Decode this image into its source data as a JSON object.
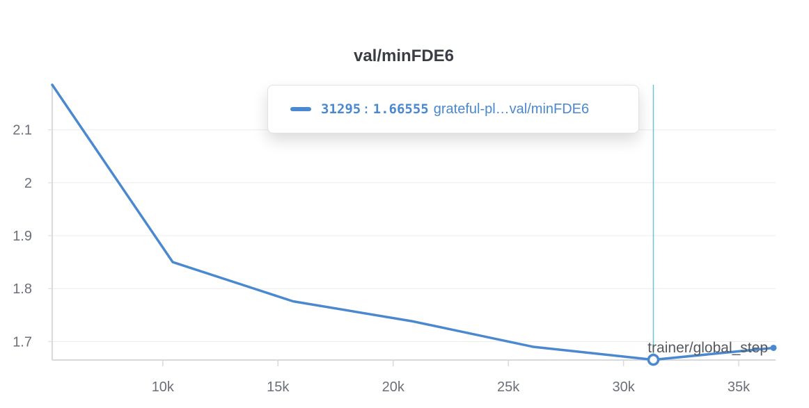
{
  "chart_data": {
    "type": "line",
    "title": "val/minFDE6",
    "xlabel": "trainer/global_step",
    "ylabel": "",
    "xlim": [
      5200,
      36600
    ],
    "ylim": [
      1.665,
      2.185
    ],
    "x_ticks": [
      10000,
      15000,
      20000,
      25000,
      30000,
      35000
    ],
    "x_tick_labels": [
      "10k",
      "15k",
      "20k",
      "25k",
      "30k",
      "35k"
    ],
    "y_ticks": [
      1.7,
      1.8,
      1.9,
      2.0,
      2.1
    ],
    "y_tick_labels": [
      "1.7",
      "1.8",
      "1.9",
      "2",
      "2.1"
    ],
    "grid": true,
    "color": "#4a88cf",
    "series": [
      {
        "x": [
          5200,
          10430,
          15650,
          20860,
          26080,
          31295,
          36510
        ],
        "values": [
          2.185,
          1.85,
          1.776,
          1.738,
          1.69,
          1.66555,
          1.688
        ]
      }
    ],
    "hover": {
      "step": 31295,
      "value": 1.66555,
      "step_text": "31295",
      "separator": ":",
      "value_text": "1.66555",
      "run_text": "grateful-pl…val/minFDE6",
      "line_color": "#6cc5d6"
    }
  }
}
